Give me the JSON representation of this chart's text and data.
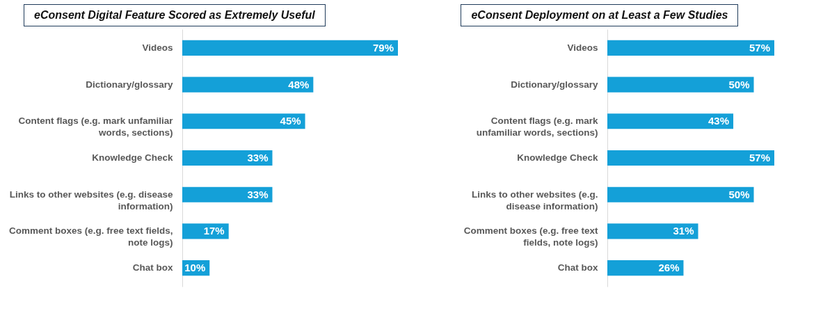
{
  "chart_data": [
    {
      "type": "bar",
      "orientation": "horizontal",
      "title": "eConsent Digital Feature Scored as Extremely Useful",
      "categories": [
        "Videos",
        "Dictionary/glossary",
        "Content flags (e.g. mark unfamiliar words, sections)",
        "Knowledge Check",
        "Links to other websites (e.g. disease information)",
        "Comment boxes (e.g. free text fields, note logs)",
        "Chat box"
      ],
      "values": [
        79,
        48,
        45,
        33,
        33,
        17,
        10
      ],
      "value_labels": [
        "79%",
        "48%",
        "45%",
        "33%",
        "33%",
        "17%",
        "10%"
      ],
      "color": "#14a0d8"
    },
    {
      "type": "bar",
      "orientation": "horizontal",
      "title": "eConsent Deployment on at Least a Few Studies",
      "categories": [
        "Videos",
        "Dictionary/glossary",
        "Content flags (e.g. mark unfamiliar words, sections)",
        "Knowledge Check",
        "Links to other websites (e.g. disease information)",
        "Comment boxes (e.g. free text fields, note logs)",
        "Chat box"
      ],
      "values": [
        57,
        50,
        43,
        57,
        50,
        31,
        26
      ],
      "value_labels": [
        "57%",
        "50%",
        "43%",
        "57%",
        "50%",
        "31%",
        "26%"
      ],
      "color": "#14a0d8"
    }
  ]
}
